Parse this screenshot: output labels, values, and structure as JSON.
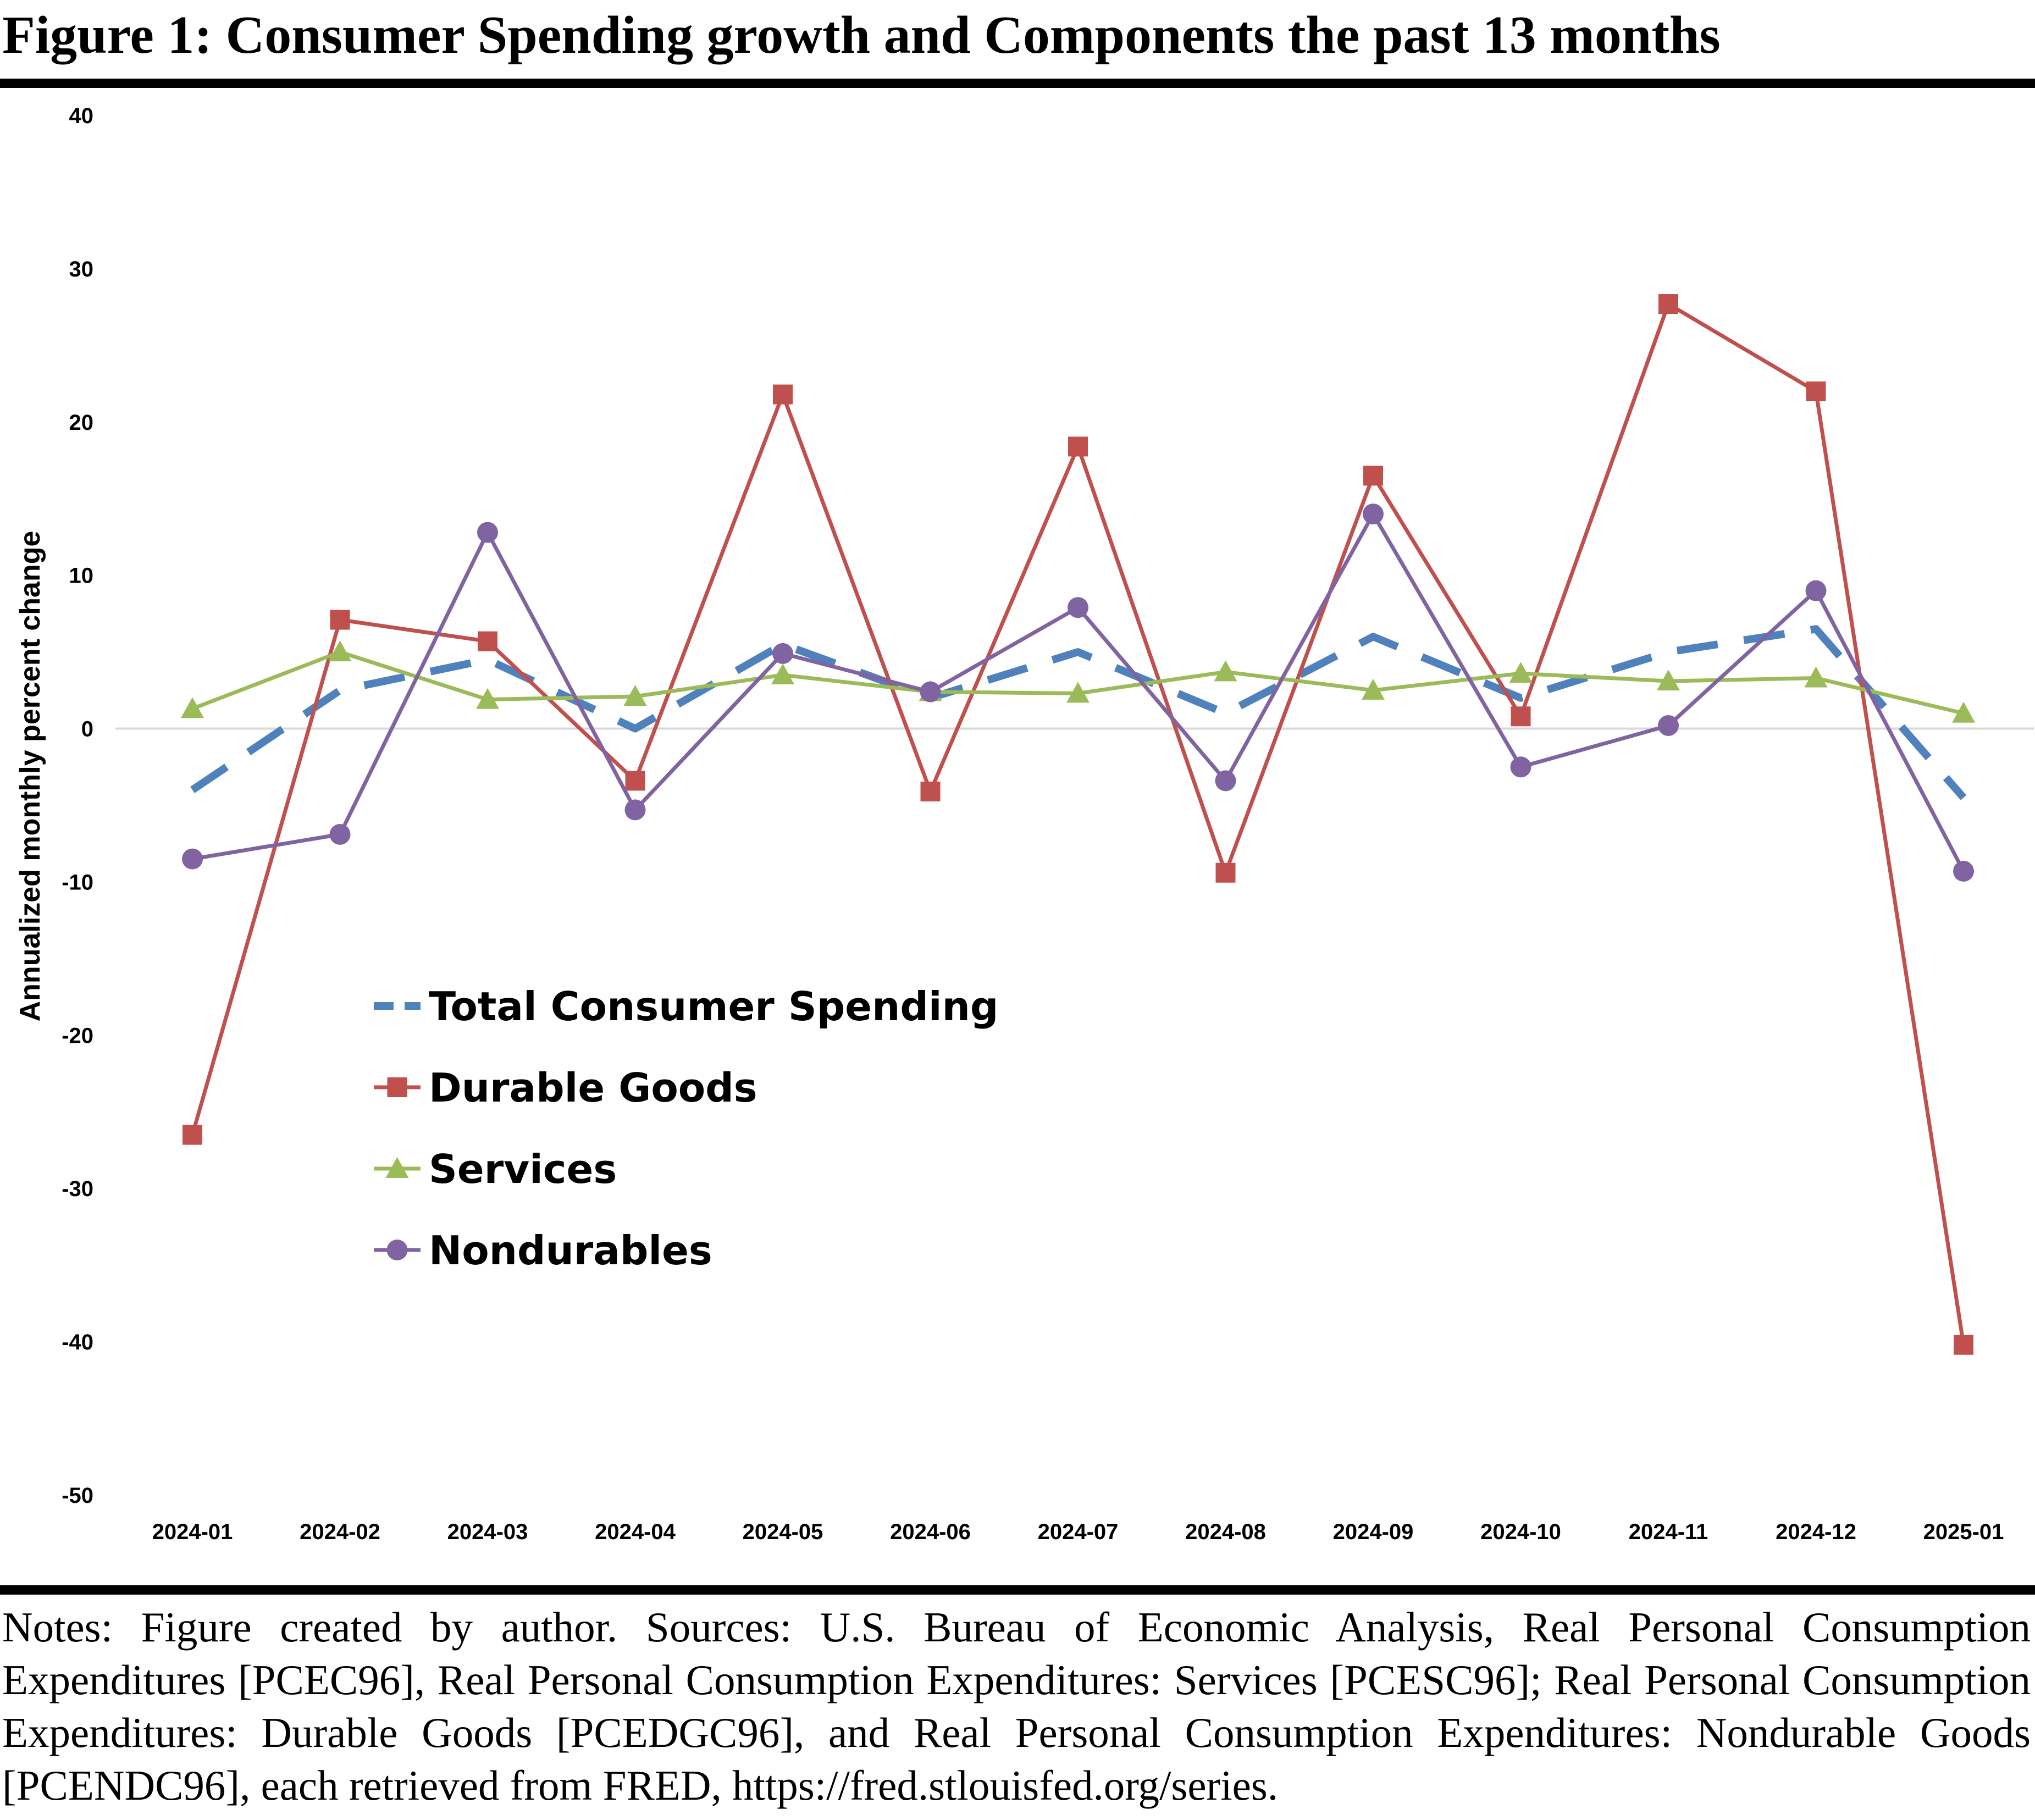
{
  "figure": {
    "title": "Figure 1: Consumer Spending growth and Components the past 13 months",
    "notes": "Notes: Figure created by author. Sources: U.S. Bureau of Economic Analysis, Real Personal Consumption Expenditures [PCEC96], Real Personal Consumption Expenditures: Services [PCESC96]; Real Personal Consumption Expenditures: Durable Goods [PCEDGC96], and Real Personal Consumption Expenditures: Nondurable Goods [PCENDC96], each retrieved from FRED, https://fred.stlouisfed.org/series."
  },
  "chart_data": {
    "type": "line",
    "title": "",
    "xlabel": "",
    "ylabel": "Annualized monthly percent change",
    "ylim": [
      -50,
      40
    ],
    "yticks": [
      40,
      30,
      20,
      10,
      0,
      -10,
      -20,
      -30,
      -40,
      -50
    ],
    "categories": [
      "2024-01",
      "2024-02",
      "2024-03",
      "2024-04",
      "2024-05",
      "2024-06",
      "2024-07",
      "2024-08",
      "2024-09",
      "2024-10",
      "2024-11",
      "2024-12",
      "2025-01"
    ],
    "grid": false,
    "zero_line": true,
    "legend_position": "lower-left inside plot",
    "series": [
      {
        "name": "Total Consumer Spending",
        "color": "#4f81bd",
        "line_style": "dashed",
        "marker": "none",
        "values": [
          -4,
          2.5,
          4.5,
          0,
          5.5,
          2,
          5,
          1,
          6,
          2,
          5,
          6.5,
          -4.5
        ]
      },
      {
        "name": "Durable Goods",
        "color": "#c0504d",
        "line_style": "solid",
        "marker": "square",
        "values": [
          -26.5,
          7.1,
          5.7,
          -3.4,
          21.8,
          -4.1,
          18.4,
          -9.4,
          16.5,
          0.8,
          27.7,
          22,
          -40.2
        ]
      },
      {
        "name": "Services",
        "color": "#9bbb59",
        "line_style": "solid",
        "marker": "triangle",
        "values": [
          1.3,
          5,
          1.9,
          2.1,
          3.5,
          2.4,
          2.3,
          3.7,
          2.5,
          3.6,
          3.1,
          3.3,
          1
        ]
      },
      {
        "name": "Nondurables",
        "color": "#8064a2",
        "line_style": "solid",
        "marker": "circle",
        "values": [
          -8.5,
          -6.9,
          12.8,
          -5.3,
          4.9,
          2.4,
          7.9,
          -3.4,
          14,
          -2.5,
          0.2,
          9,
          -9.3
        ]
      }
    ]
  }
}
